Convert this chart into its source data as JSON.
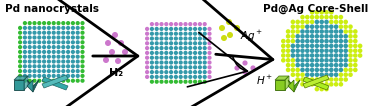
{
  "title_left": "Pd nanocrystals",
  "title_right": "Pd@Ag Core-Shell",
  "arrow1_label": "H₂",
  "bg_color": "#ffffff",
  "pd_core_color": "#3399aa",
  "pd_surface_color": "#33bb33",
  "h2_dot_color": "#cc77cc",
  "ag_dot_color": "#ccdd11",
  "hydride_surface_color": "#cc77cc",
  "hydride_bottom_color": "#33bb33",
  "ag_shell_color": "#ccee11",
  "pd_core2_color": "#3399aa",
  "small_cube_teal": "#339999",
  "small_oct_teal": "#226666",
  "small_rod_teal": "#33aaaa",
  "small_cube_green": "#88cc22",
  "small_oct_green": "#55aa22",
  "small_rod_green": "#aaee22",
  "figw": 3.78,
  "figh": 1.06,
  "dpi": 100
}
